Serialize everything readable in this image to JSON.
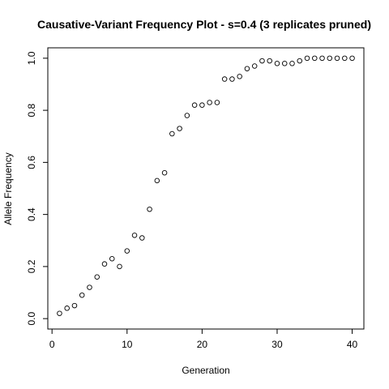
{
  "chart_data": {
    "type": "scatter",
    "title": "Causative-Variant Frequency Plot - s=0.4 (3 replicates pruned)",
    "xlabel": "Generation",
    "ylabel": "Allele Frequency",
    "xlim": [
      -0.56,
      41.56
    ],
    "ylim": [
      -0.04,
      1.04
    ],
    "xticks": [
      0,
      10,
      20,
      30,
      40
    ],
    "yticks": [
      0.0,
      0.2,
      0.4,
      0.6,
      0.8,
      1.0
    ],
    "xtick_labels": [
      "0",
      "10",
      "20",
      "30",
      "40"
    ],
    "ytick_labels": [
      "0.0",
      "0.2",
      "0.4",
      "0.6",
      "0.8",
      "1.0"
    ],
    "grid": false,
    "x": [
      1,
      2,
      3,
      4,
      5,
      6,
      7,
      8,
      9,
      10,
      11,
      12,
      13,
      14,
      15,
      16,
      17,
      18,
      19,
      20,
      21,
      22,
      23,
      24,
      25,
      26,
      27,
      28,
      29,
      30,
      31,
      32,
      33,
      34,
      35,
      36,
      37,
      38,
      39,
      40
    ],
    "y": [
      0.02,
      0.04,
      0.05,
      0.09,
      0.12,
      0.16,
      0.21,
      0.23,
      0.2,
      0.26,
      0.32,
      0.31,
      0.42,
      0.53,
      0.56,
      0.71,
      0.73,
      0.78,
      0.82,
      0.82,
      0.83,
      0.83,
      0.92,
      0.92,
      0.93,
      0.96,
      0.97,
      0.99,
      0.99,
      0.98,
      0.98,
      0.98,
      0.99,
      1.0,
      1.0,
      1.0,
      1.0,
      1.0,
      1.0,
      1.0
    ]
  }
}
